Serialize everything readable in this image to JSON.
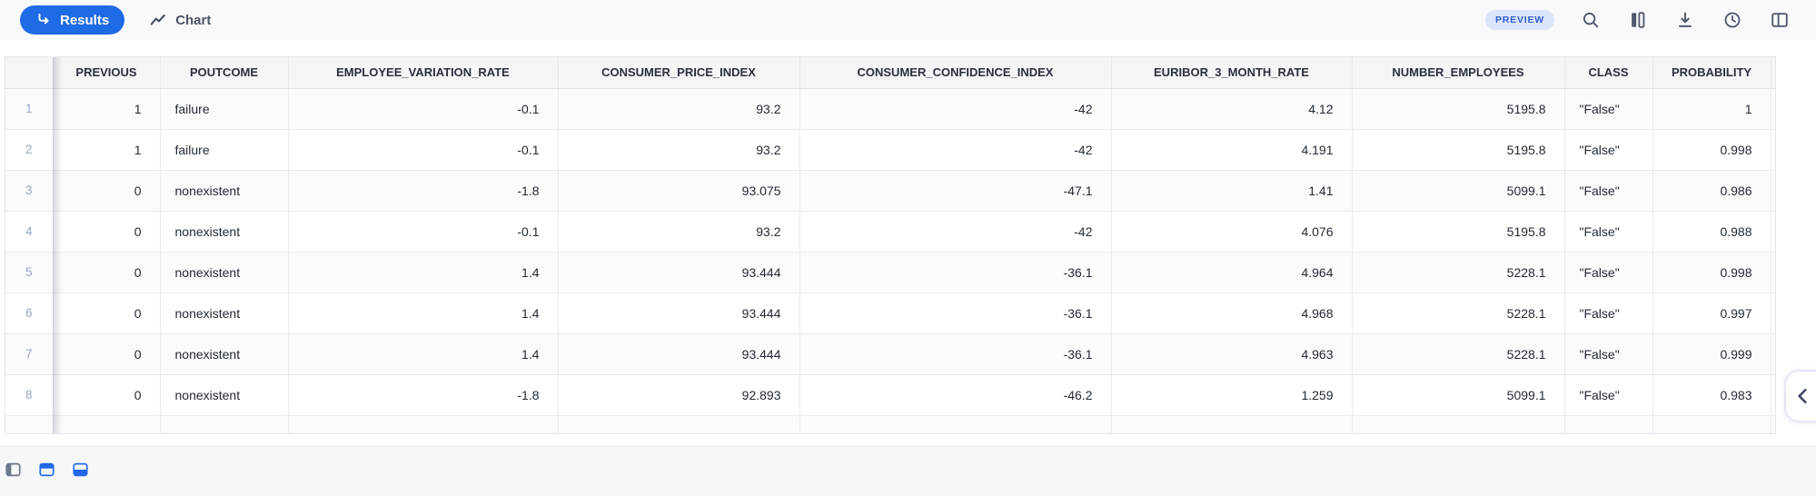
{
  "toolbar": {
    "results_tab": "Results",
    "chart_tab": "Chart",
    "preview_badge": "PREVIEW",
    "right_icons": [
      "search-icon",
      "columns-icon",
      "download-icon",
      "history-icon",
      "split-panel-icon"
    ]
  },
  "colors": {
    "accent_blue": "#1f6ae5",
    "preview_badge_bg": "#dbe6fc",
    "preview_badge_text": "#2c5fd3",
    "icon_slate": "#4e586c",
    "row_number_text": "#98a6c2"
  },
  "table": {
    "columns": [
      {
        "key": "previous",
        "label": "PREVIOUS"
      },
      {
        "key": "poutcome",
        "label": "POUTCOME"
      },
      {
        "key": "employee_variation_rate",
        "label": "EMPLOYEE_VARIATION_RATE"
      },
      {
        "key": "consumer_price_index",
        "label": "CONSUMER_PRICE_INDEX"
      },
      {
        "key": "consumer_confidence_index",
        "label": "CONSUMER_CONFIDENCE_INDEX"
      },
      {
        "key": "euribor_3_month_rate",
        "label": "EURIBOR_3_MONTH_RATE"
      },
      {
        "key": "number_employees",
        "label": "NUMBER_EMPLOYEES"
      },
      {
        "key": "class",
        "label": "CLASS"
      },
      {
        "key": "probability",
        "label": "PROBABILITY"
      }
    ],
    "rows": [
      {
        "n": "1",
        "previous": "1",
        "poutcome": "failure",
        "employee_variation_rate": "-0.1",
        "consumer_price_index": "93.2",
        "consumer_confidence_index": "-42",
        "euribor_3_month_rate": "4.12",
        "number_employees": "5195.8",
        "class": "\"False\"",
        "probability": "1"
      },
      {
        "n": "2",
        "previous": "1",
        "poutcome": "failure",
        "employee_variation_rate": "-0.1",
        "consumer_price_index": "93.2",
        "consumer_confidence_index": "-42",
        "euribor_3_month_rate": "4.191",
        "number_employees": "5195.8",
        "class": "\"False\"",
        "probability": "0.998"
      },
      {
        "n": "3",
        "previous": "0",
        "poutcome": "nonexistent",
        "employee_variation_rate": "-1.8",
        "consumer_price_index": "93.075",
        "consumer_confidence_index": "-47.1",
        "euribor_3_month_rate": "1.41",
        "number_employees": "5099.1",
        "class": "\"False\"",
        "probability": "0.986"
      },
      {
        "n": "4",
        "previous": "0",
        "poutcome": "nonexistent",
        "employee_variation_rate": "-0.1",
        "consumer_price_index": "93.2",
        "consumer_confidence_index": "-42",
        "euribor_3_month_rate": "4.076",
        "number_employees": "5195.8",
        "class": "\"False\"",
        "probability": "0.988"
      },
      {
        "n": "5",
        "previous": "0",
        "poutcome": "nonexistent",
        "employee_variation_rate": "1.4",
        "consumer_price_index": "93.444",
        "consumer_confidence_index": "-36.1",
        "euribor_3_month_rate": "4.964",
        "number_employees": "5228.1",
        "class": "\"False\"",
        "probability": "0.998"
      },
      {
        "n": "6",
        "previous": "0",
        "poutcome": "nonexistent",
        "employee_variation_rate": "1.4",
        "consumer_price_index": "93.444",
        "consumer_confidence_index": "-36.1",
        "euribor_3_month_rate": "4.968",
        "number_employees": "5228.1",
        "class": "\"False\"",
        "probability": "0.997"
      },
      {
        "n": "7",
        "previous": "0",
        "poutcome": "nonexistent",
        "employee_variation_rate": "1.4",
        "consumer_price_index": "93.444",
        "consumer_confidence_index": "-36.1",
        "euribor_3_month_rate": "4.963",
        "number_employees": "5228.1",
        "class": "\"False\"",
        "probability": "0.999"
      },
      {
        "n": "8",
        "previous": "0",
        "poutcome": "nonexistent",
        "employee_variation_rate": "-1.8",
        "consumer_price_index": "92.893",
        "consumer_confidence_index": "-46.2",
        "euribor_3_month_rate": "1.259",
        "number_employees": "5099.1",
        "class": "\"False\"",
        "probability": "0.983"
      }
    ]
  },
  "side_panel_toggle": {
    "icon": "chevron-left-icon"
  },
  "bottom_bar": {
    "icons": [
      "layout-left-icon",
      "layout-top-icon",
      "layout-bottom-icon"
    ]
  }
}
